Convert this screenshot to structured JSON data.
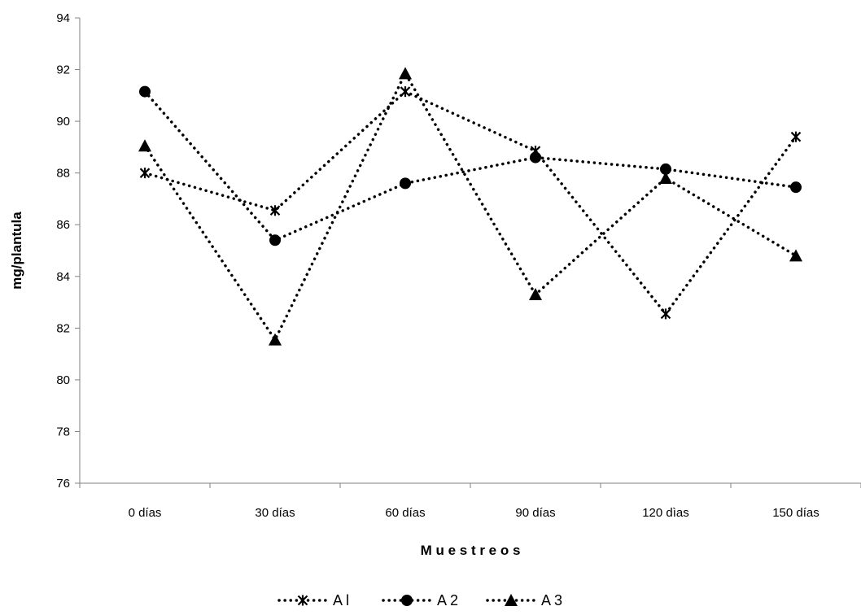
{
  "chart_data": {
    "type": "line",
    "title": "",
    "xlabel": "M u e s t r e o s",
    "ylabel": "mg/plantula",
    "categories": [
      "0 días",
      "30 días",
      "60 días",
      "90 días",
      "120 dìas",
      "150 días"
    ],
    "ylim": [
      76,
      94
    ],
    "yticks": [
      76,
      78,
      80,
      82,
      84,
      86,
      88,
      90,
      92,
      94
    ],
    "grid": false,
    "legend_position": "bottom",
    "line_style": "dotted",
    "colors": {
      "line": "#000000",
      "axis": "#808080"
    },
    "series": [
      {
        "name": "A l",
        "marker": "asterisk",
        "values": [
          88.0,
          86.55,
          91.15,
          88.85,
          82.55,
          89.4
        ]
      },
      {
        "name": "A 2",
        "marker": "circle",
        "values": [
          91.15,
          85.4,
          87.6,
          88.6,
          88.15,
          87.45
        ]
      },
      {
        "name": "A 3",
        "marker": "triangle",
        "values": [
          89.05,
          81.55,
          91.85,
          83.3,
          87.8,
          84.8
        ]
      }
    ]
  }
}
